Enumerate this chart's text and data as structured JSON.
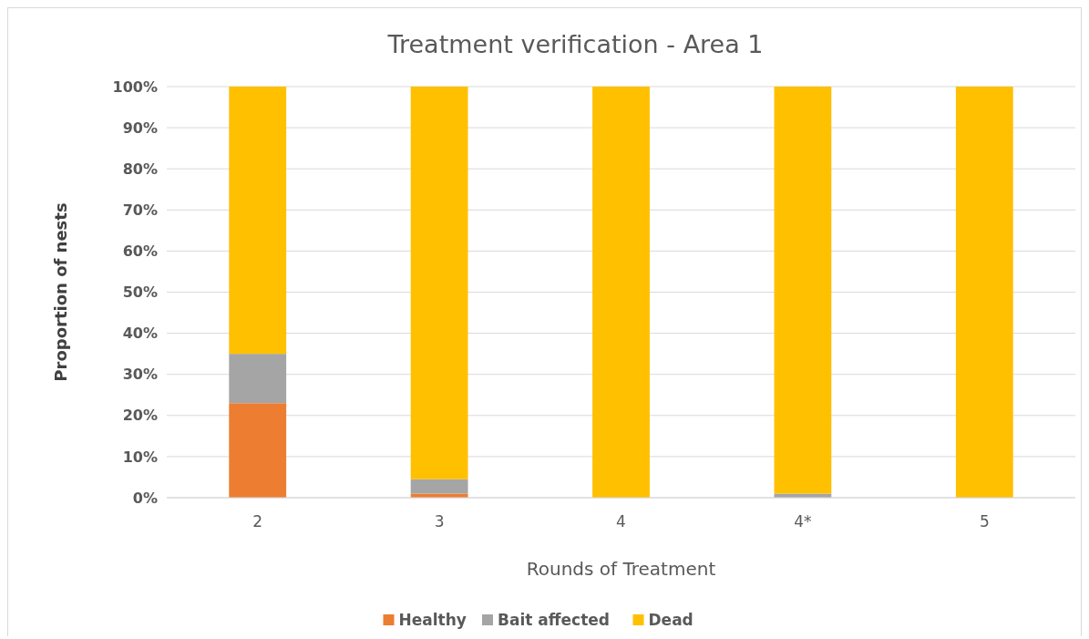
{
  "chart_data": {
    "type": "bar",
    "title": "Treatment verification - Area 1",
    "xlabel": "Rounds of Treatment",
    "ylabel": "Proportion of nests",
    "categories": [
      "2",
      "3",
      "4",
      "4*",
      "5"
    ],
    "stacked": true,
    "series": [
      {
        "name": "Healthy",
        "color": "#ed7d31",
        "values": [
          23,
          1,
          0,
          0,
          0
        ]
      },
      {
        "name": "Bait affected",
        "color": "#a5a5a5",
        "values": [
          12,
          3.5,
          0,
          1,
          0
        ]
      },
      {
        "name": "Dead",
        "color": "#ffc000",
        "values": [
          65,
          95.5,
          100,
          99,
          100
        ]
      }
    ],
    "ylim": [
      0,
      100
    ],
    "yticks": [
      {
        "value": 0,
        "label": "0%"
      },
      {
        "value": 10,
        "label": "10%"
      },
      {
        "value": 20,
        "label": "20%"
      },
      {
        "value": 30,
        "label": "30%"
      },
      {
        "value": 40,
        "label": "40%"
      },
      {
        "value": 50,
        "label": "50%"
      },
      {
        "value": 60,
        "label": "60%"
      },
      {
        "value": 70,
        "label": "70%"
      },
      {
        "value": 80,
        "label": "80%"
      },
      {
        "value": 90,
        "label": "90%"
      },
      {
        "value": 100,
        "label": "100%"
      }
    ],
    "grid": "y",
    "legend": "bottom"
  }
}
